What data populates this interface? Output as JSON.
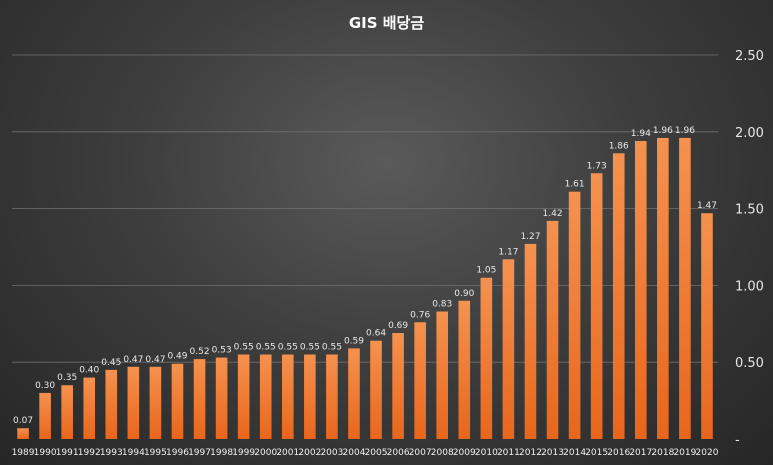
{
  "chart_data": {
    "type": "bar",
    "title": "GIS 배당금",
    "xlabel": "",
    "ylabel": "",
    "ylim": [
      0,
      2.5
    ],
    "y_ticks": [
      "-",
      "0.50",
      "1.00",
      "1.50",
      "2.00",
      "2.50"
    ],
    "y_tick_values": [
      0,
      0.5,
      1.0,
      1.5,
      2.0,
      2.5
    ],
    "y_axis_position": "right",
    "grid": true,
    "legend": "none",
    "categories": [
      "1989",
      "1990",
      "1991",
      "1992",
      "1993",
      "1994",
      "1995",
      "1996",
      "1997",
      "1998",
      "1999",
      "2000",
      "2001",
      "2002",
      "2003",
      "2004",
      "2005",
      "2006",
      "2007",
      "2008",
      "2009",
      "2010",
      "2011",
      "2012",
      "2013",
      "2014",
      "2015",
      "2016",
      "2017",
      "2018",
      "2019",
      "2020"
    ],
    "values": [
      0.07,
      0.3,
      0.35,
      0.4,
      0.45,
      0.47,
      0.47,
      0.49,
      0.52,
      0.53,
      0.55,
      0.55,
      0.55,
      0.55,
      0.55,
      0.59,
      0.64,
      0.69,
      0.76,
      0.83,
      0.9,
      1.05,
      1.17,
      1.27,
      1.42,
      1.61,
      1.73,
      1.86,
      1.94,
      1.96,
      1.96,
      1.47
    ],
    "value_labels": [
      "0.07",
      "0.30",
      "0.35",
      "0.40",
      "0.45",
      "0.47",
      "0.47",
      "0.49",
      "0.52",
      "0.53",
      "0.55",
      "0.55",
      "0.55",
      "0.55",
      "0.55",
      "0.59",
      "0.64",
      "0.69",
      "0.76",
      "0.83",
      "0.90",
      "1.05",
      "1.17",
      "1.27",
      "1.42",
      "1.61",
      "1.73",
      "1.86",
      "1.94",
      "1.96",
      "1.96",
      "1.47"
    ],
    "colors": {
      "bar_top": "#f5924f",
      "bar_bottom": "#e8661c",
      "grid": "#707070"
    }
  }
}
